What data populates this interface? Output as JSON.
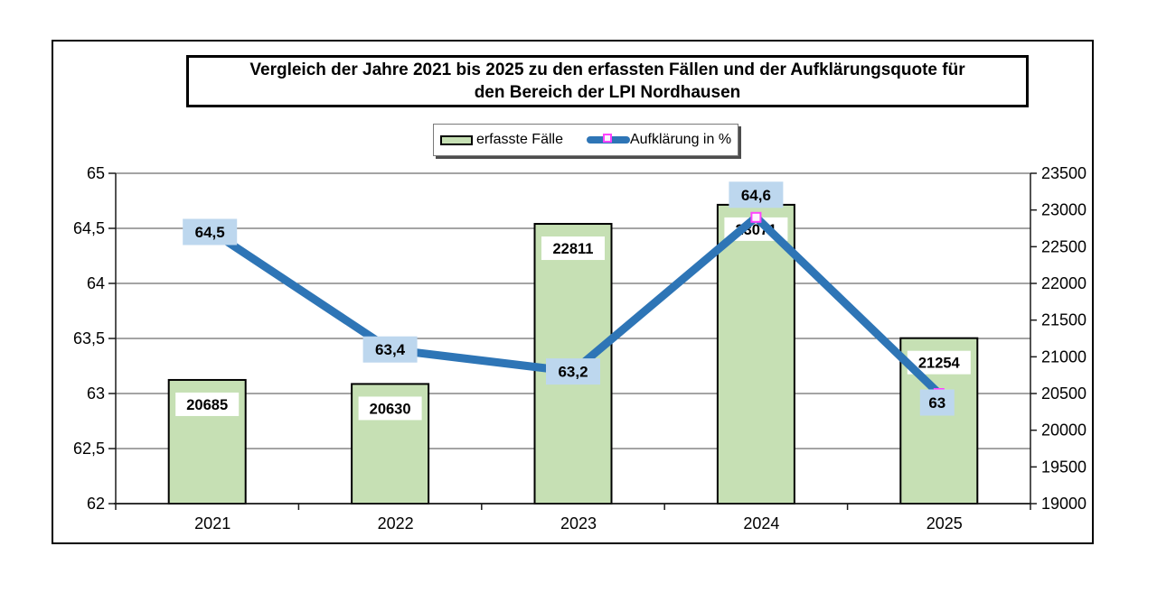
{
  "title": {
    "line1": "Vergleich der Jahre 2021 bis 2025 zu den erfassten Fällen und der Aufklärungsquote für",
    "line2": "den Bereich der LPI Nordhausen"
  },
  "legend": {
    "bar_label": "erfasste Fälle",
    "line_label": "Aufklärung in %"
  },
  "colors": {
    "bar_fill": "#c6e0b4",
    "bar_border": "#000000",
    "line": "#2e75b6",
    "line_label_bg": "#bdd7ee",
    "bar_label_bg": "#ffffff",
    "marker_stroke": "#ff42ff",
    "marker_fill": "#fdf2fd",
    "gridline": "#6e6e6e",
    "axis": "#1a1a1a",
    "text": "#000000"
  },
  "chart_data": {
    "type": "bar+line combo",
    "title": "Vergleich der Jahre 2021 bis 2025 zu den erfassten Fällen und der Aufklärungsquote für den Bereich der LPI Nordhausen",
    "categories": [
      "2021",
      "2022",
      "2023",
      "2024",
      "2025"
    ],
    "series": [
      {
        "name": "erfasste Fälle",
        "type": "bar",
        "axis": "right",
        "values": [
          20685,
          20630,
          22811,
          23071,
          21254
        ],
        "labels": [
          "20685",
          "20630",
          "22811",
          "23071",
          "21254"
        ]
      },
      {
        "name": "Aufklärung in %",
        "type": "line",
        "axis": "left",
        "values": [
          64.5,
          63.4,
          63.2,
          64.6,
          63
        ],
        "labels": [
          "64,5",
          "63,4",
          "63,2",
          "64,6",
          "63"
        ],
        "label_offsets": [
          [
            3,
            4
          ],
          [
            0,
            0
          ],
          [
            0,
            0
          ],
          [
            0,
            -25
          ],
          [
            -2,
            10
          ]
        ]
      }
    ],
    "left_axis": {
      "min": 62,
      "max": 65,
      "step": 0.5,
      "ticks": [
        "65",
        "64,5",
        "64",
        "63,5",
        "63",
        "62,5",
        "62"
      ]
    },
    "right_axis": {
      "min": 19000,
      "max": 23500,
      "step": 500,
      "ticks": [
        "23500",
        "23000",
        "22500",
        "22000",
        "21500",
        "21000",
        "20500",
        "20000",
        "19500",
        "19000"
      ]
    },
    "grid": true,
    "legend_position": "top"
  }
}
